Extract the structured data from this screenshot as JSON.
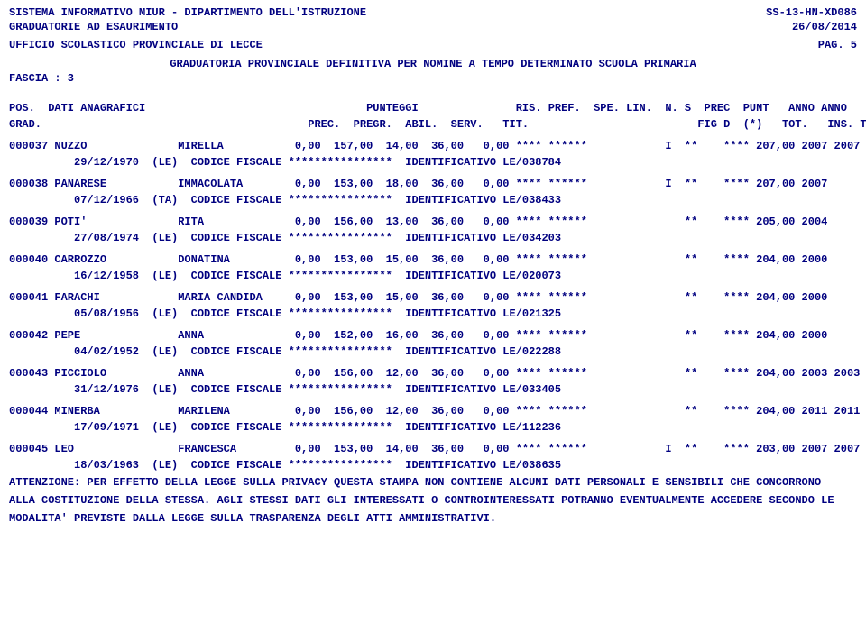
{
  "header": {
    "l1_left": "SISTEMA INFORMATIVO MIUR - DIPARTIMENTO DELL'ISTRUZIONE",
    "l1_right": "SS-13-HN-XD086",
    "l2_left": "GRADUATORIE AD ESAURIMENTO",
    "l2_right": "26/08/2014",
    "l3_left": "UFFICIO SCOLASTICO PROVINCIALE DI LECCE",
    "l3_right": "PAG.    5",
    "l4_center": "GRADUATORIA PROVINCIALE DEFINITIVA PER NOMINE A TEMPO DETERMINATO  SCUOLA PRIMARIA",
    "l5": "FASCIA : 3"
  },
  "colhdr": {
    "line1": "POS.  DATI ANAGRAFICI                                  PUNTEGGI               RIS. PREF.  SPE. LIN.  N. S  PREC  PUNT   ANNO ANNO",
    "line2": "GRAD.                                         PREC.  PREGR.  ABIL.  SERV.   TIT.                          FIG D  (*)   TOT.   INS. TRASF."
  },
  "rows": [
    {
      "main": "000037 NUZZO              MIRELLA           0,00  157,00  14,00  36,00   0,00 **** ******            I  **    **** 207,00 2007 2007",
      "sub": "29/12/1970  (LE)  CODICE FISCALE ****************  IDENTIFICATIVO LE/038784"
    },
    {
      "main": "000038 PANARESE           IMMACOLATA        0,00  153,00  18,00  36,00   0,00 **** ******            I  **    **** 207,00 2007",
      "sub": "07/12/1966  (TA)  CODICE FISCALE ****************  IDENTIFICATIVO LE/038433"
    },
    {
      "main": "000039 POTI'              RITA              0,00  156,00  13,00  36,00   0,00 **** ******               **    **** 205,00 2004",
      "sub": "27/08/1974  (LE)  CODICE FISCALE ****************  IDENTIFICATIVO LE/034203"
    },
    {
      "main": "000040 CARROZZO           DONATINA          0,00  153,00  15,00  36,00   0,00 **** ******               **    **** 204,00 2000",
      "sub": "16/12/1958  (LE)  CODICE FISCALE ****************  IDENTIFICATIVO LE/020073"
    },
    {
      "main": "000041 FARACHI            MARIA CANDIDA     0,00  153,00  15,00  36,00   0,00 **** ******               **    **** 204,00 2000",
      "sub": "05/08/1956  (LE)  CODICE FISCALE ****************  IDENTIFICATIVO LE/021325"
    },
    {
      "main": "000042 PEPE               ANNA              0,00  152,00  16,00  36,00   0,00 **** ******               **    **** 204,00 2000",
      "sub": "04/02/1952  (LE)  CODICE FISCALE ****************  IDENTIFICATIVO LE/022288"
    },
    {
      "main": "000043 PICCIOLO           ANNA              0,00  156,00  12,00  36,00   0,00 **** ******               **    **** 204,00 2003 2003",
      "sub": "31/12/1976  (LE)  CODICE FISCALE ****************  IDENTIFICATIVO LE/033405"
    },
    {
      "main": "000044 MINERBA            MARILENA          0,00  156,00  12,00  36,00   0,00 **** ******               **    **** 204,00 2011 2011",
      "sub": "17/09/1971  (LE)  CODICE FISCALE ****************  IDENTIFICATIVO LE/112236"
    },
    {
      "main": "000045 LEO                FRANCESCA         0,00  153,00  14,00  36,00   0,00 **** ******            I  **    **** 203,00 2007 2007",
      "sub": "18/03/1963  (LE)  CODICE FISCALE ****************  IDENTIFICATIVO LE/038635"
    }
  ],
  "footer": {
    "l1": "ATTENZIONE: PER EFFETTO DELLA LEGGE SULLA PRIVACY QUESTA STAMPA NON CONTIENE ALCUNI DATI PERSONALI E SENSIBILI CHE CONCORRONO",
    "l2": "ALLA COSTITUZIONE DELLA STESSA. AGLI STESSI DATI GLI INTERESSATI O CONTROINTERESSATI POTRANNO EVENTUALMENTE ACCEDERE SECONDO LE",
    "l3": "MODALITA' PREVISTE DALLA LEGGE SULLA TRASPARENZA DEGLI ATTI AMMINISTRATIVI."
  }
}
